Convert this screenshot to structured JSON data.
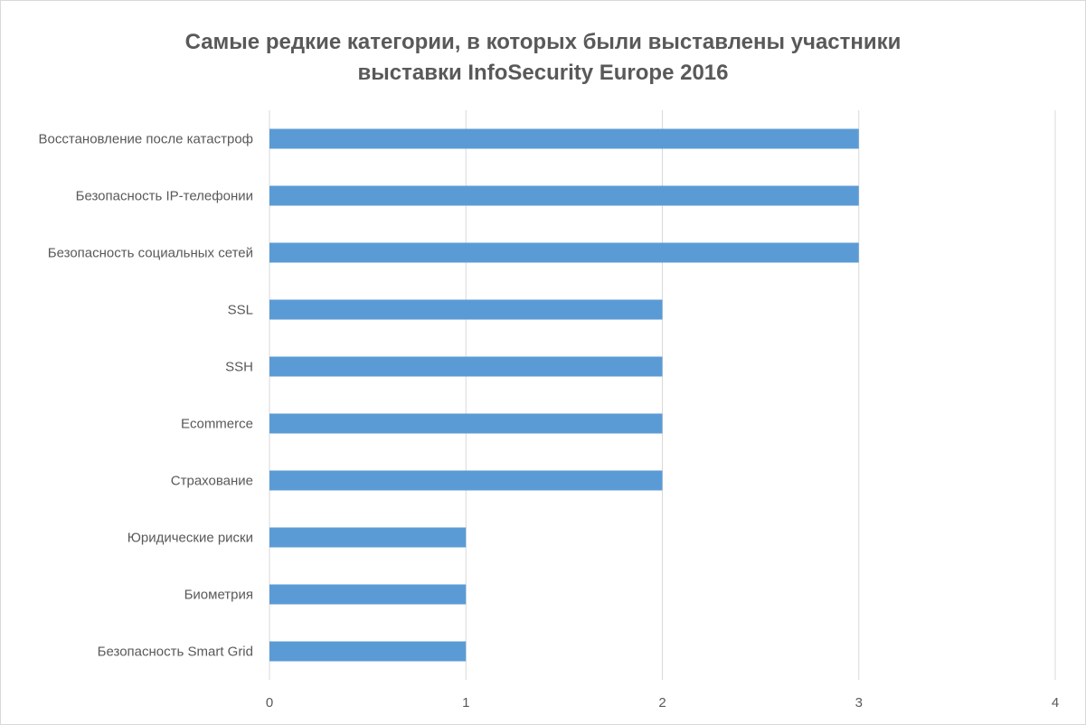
{
  "chart_data": {
    "type": "bar",
    "orientation": "horizontal",
    "title_lines": [
      "Самые редкие категории, в которых были выставлены участники",
      "выставки InfoSecurity Europe 2016"
    ],
    "categories": [
      "Восстановление после катастроф",
      "Безопасность IP-телефонии",
      "Безопасность социальных сетей",
      "SSL",
      "SSH",
      "Ecommerce",
      "Страхование",
      "Юридические риски",
      "Биометрия",
      "Безопасность Smart Grid"
    ],
    "values": [
      3,
      3,
      3,
      2,
      2,
      2,
      2,
      1,
      1,
      1
    ],
    "xlim": [
      0,
      4
    ],
    "xticks": [
      "0",
      "1",
      "2",
      "3",
      "4"
    ],
    "grid": true,
    "legend": "none",
    "bar_color": "#5b9bd5",
    "grid_color": "#d9d9d9",
    "text_color": "#595959"
  }
}
